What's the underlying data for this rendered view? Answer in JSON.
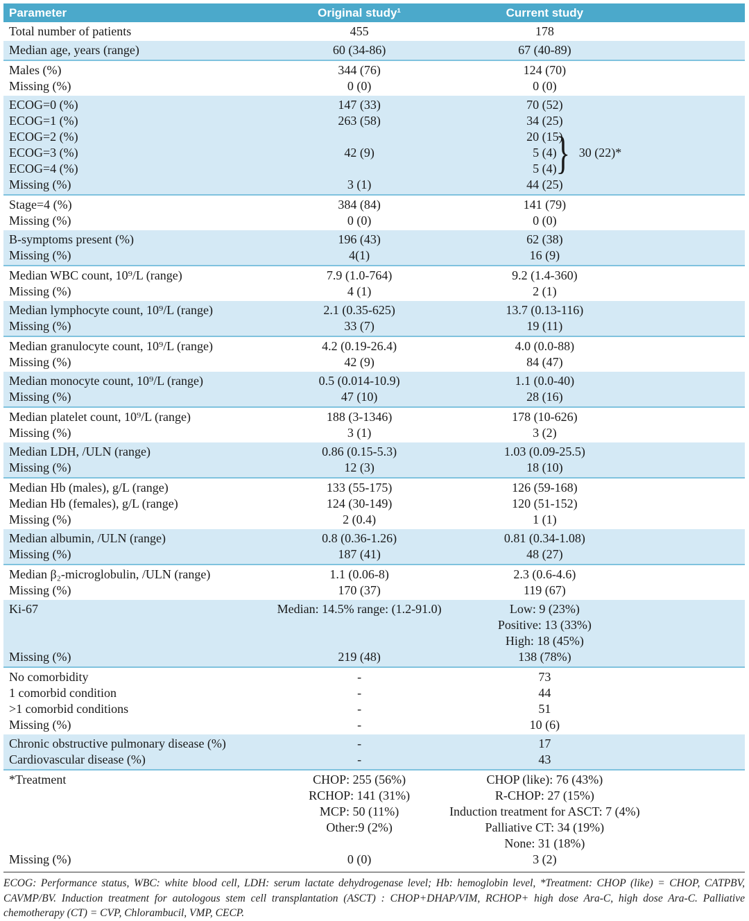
{
  "colors": {
    "header_bg": "#4ba9cb",
    "header_text": "#ffffff",
    "blue_row_bg": "#d4e9f5",
    "blue_row_border": "#7fc2de",
    "body_text": "#1a1a1a"
  },
  "table": {
    "header": {
      "parameter": "Parameter",
      "original": "Original study¹",
      "current": "Current study"
    },
    "sections": [
      {
        "shade": "white",
        "rows": [
          {
            "param": "Total number of patients",
            "original": "455",
            "current": "178"
          }
        ]
      },
      {
        "shade": "blue",
        "rows": [
          {
            "param": "Median age, years (range)",
            "original": "60 (34-86)",
            "current": "67 (40-89)"
          }
        ]
      },
      {
        "shade": "white",
        "rows": [
          {
            "param": "Males (%)",
            "original": "344 (76)",
            "current": "124 (70)"
          },
          {
            "param": "Missing (%)",
            "original": "0 (0)",
            "current": "0 (0)"
          }
        ]
      },
      {
        "shade": "blue",
        "rows": [
          {
            "param": "ECOG=0 (%)",
            "original": "147 (33)",
            "current": "70 (52)"
          },
          {
            "param": "ECOG=1 (%)",
            "original": "263 (58)",
            "current": "34 (25)"
          },
          {
            "param": "ECOG=2 (%)",
            "original": "",
            "current": "20 (15)"
          },
          {
            "param": "ECOG=3 (%)",
            "original": "42 (9)",
            "current": "5 (4)"
          },
          {
            "param": "ECOG=4 (%)",
            "original": "",
            "current": "5 (4)"
          },
          {
            "param": "Missing (%)",
            "original": "3 (1)",
            "current": "44 (25)"
          }
        ],
        "annotation": {
          "brace": "}",
          "label": "30 (22)*"
        }
      },
      {
        "shade": "white",
        "rows": [
          {
            "param": "Stage=4 (%)",
            "original": "384 (84)",
            "current": "141 (79)"
          },
          {
            "param": "Missing (%)",
            "original": "0 (0)",
            "current": "0 (0)"
          }
        ]
      },
      {
        "shade": "blue",
        "rows": [
          {
            "param": "B-symptoms present (%)",
            "original": "196 (43)",
            "current": "62 (38)"
          },
          {
            "param": "Missing (%)",
            "original": "4(1)",
            "current": "16 (9)"
          }
        ]
      },
      {
        "shade": "white",
        "rows": [
          {
            "param": "Median WBC count, 10⁹/L (range)",
            "original": "7.9 (1.0-764)",
            "current": "9.2 (1.4-360)"
          },
          {
            "param": "Missing (%)",
            "original": "4 (1)",
            "current": "2 (1)"
          }
        ]
      },
      {
        "shade": "blue",
        "rows": [
          {
            "param": "Median lymphocyte count, 10⁹/L (range)",
            "original": "2.1 (0.35-625)",
            "current": "13.7 (0.13-116)"
          },
          {
            "param": "Missing (%)",
            "original": "33 (7)",
            "current": "19 (11)"
          }
        ]
      },
      {
        "shade": "white",
        "rows": [
          {
            "param": "Median granulocyte count, 10⁹/L (range)",
            "original": "4.2 (0.19-26.4)",
            "current": "4.0 (0.0-88)"
          },
          {
            "param": "Missing (%)",
            "original": "42 (9)",
            "current": "84 (47)"
          }
        ]
      },
      {
        "shade": "blue",
        "rows": [
          {
            "param": "Median monocyte count, 10⁹/L (range)",
            "original": "0.5 (0.014-10.9)",
            "current": "1.1 (0.0-40)"
          },
          {
            "param": "Missing (%)",
            "original": "47 (10)",
            "current": "28 (16)"
          }
        ]
      },
      {
        "shade": "white",
        "rows": [
          {
            "param": "Median platelet count, 10⁹/L (range)",
            "original": "188 (3-1346)",
            "current": "178 (10-626)"
          },
          {
            "param": "Missing (%)",
            "original": "3 (1)",
            "current": "3 (2)"
          }
        ]
      },
      {
        "shade": "blue",
        "rows": [
          {
            "param": "Median LDH, /ULN (range)",
            "original": "0.86 (0.15-5.3)",
            "current": "1.03 (0.09-25.5)"
          },
          {
            "param": "Missing (%)",
            "original": "12 (3)",
            "current": "18 (10)"
          }
        ]
      },
      {
        "shade": "white",
        "rows": [
          {
            "param": "Median Hb (males), g/L (range)",
            "original": "133 (55-175)",
            "current": "126 (59-168)"
          },
          {
            "param": "Median Hb (females), g/L (range)",
            "original": "124 (30-149)",
            "current": "120 (51-152)"
          },
          {
            "param": "Missing (%)",
            "original": "2 (0.4)",
            "current": "1 (1)"
          }
        ]
      },
      {
        "shade": "blue",
        "rows": [
          {
            "param": "Median albumin, /ULN (range)",
            "original": "0.8 (0.36-1.26)",
            "current": "0.81 (0.34-1.08)"
          },
          {
            "param": "Missing (%)",
            "original": "187 (41)",
            "current": "48 (27)"
          }
        ]
      },
      {
        "shade": "white",
        "rows": [
          {
            "param": "Median β₂-microglobulin, /ULN (range)",
            "original": "1.1 (0.06-8)",
            "current": "2.3 (0.6-4.6)"
          },
          {
            "param": "Missing (%)",
            "original": "170 (37)",
            "current": "119 (67)"
          }
        ]
      },
      {
        "shade": "blue",
        "rows": [
          {
            "param": "Ki-67",
            "original": "Median: 14.5% range: (1.2-91.0)",
            "current": "Low: 9 (23%)"
          },
          {
            "param": "",
            "original": "",
            "current": "Positive: 13 (33%)"
          },
          {
            "param": "",
            "original": "",
            "current": "High: 18 (45%)"
          },
          {
            "param": "Missing (%)",
            "original": "219 (48)",
            "current": "138 (78%)"
          }
        ]
      },
      {
        "shade": "white",
        "rows": [
          {
            "param": "No comorbidity",
            "original": "-",
            "current": "73"
          },
          {
            "param": "1 comorbid condition",
            "original": "-",
            "current": "44"
          },
          {
            "param": ">1 comorbid conditions",
            "original": "-",
            "current": "51"
          },
          {
            "param": "Missing (%)",
            "original": "-",
            "current": "10 (6)"
          }
        ]
      },
      {
        "shade": "blue",
        "rows": [
          {
            "param": "Chronic obstructive pulmonary disease (%)",
            "original": "-",
            "current": "17"
          },
          {
            "param": "Cardiovascular disease (%)",
            "original": "-",
            "current": "43"
          }
        ]
      },
      {
        "shade": "white",
        "rows": [
          {
            "param": "*Treatment",
            "original": "CHOP: 255 (56%)",
            "current": "CHOP (like): 76 (43%)"
          },
          {
            "param": "",
            "original": "RCHOP: 141 (31%)",
            "current": "R-CHOP: 27 (15%)"
          },
          {
            "param": "",
            "original": "MCP: 50 (11%)",
            "current": "Induction treatment for ASCT: 7 (4%)"
          },
          {
            "param": "",
            "original": "Other:9 (2%)",
            "current": "Palliative CT: 34 (19%)"
          },
          {
            "param": "",
            "original": "",
            "current": "None: 31 (18%)"
          },
          {
            "param": "Missing (%)",
            "original": "0 (0)",
            "current": "3 (2)"
          }
        ]
      }
    ],
    "footnote": "ECOG: Performance status, WBC: white blood cell, LDH: serum lactate dehydrogenase level; Hb: hemoglobin level, *Treatment: CHOP (like) = CHOP, CATPBV, CAVMP/BV. Induction treatment for autologous stem cell transplantation (ASCT) : CHOP+DHAP/VIM, RCHOP+ high dose Ara-C, high dose Ara-C. Palliative chemotherapy (CT) = CVP, Chlorambucil, VMP, CECP."
  }
}
